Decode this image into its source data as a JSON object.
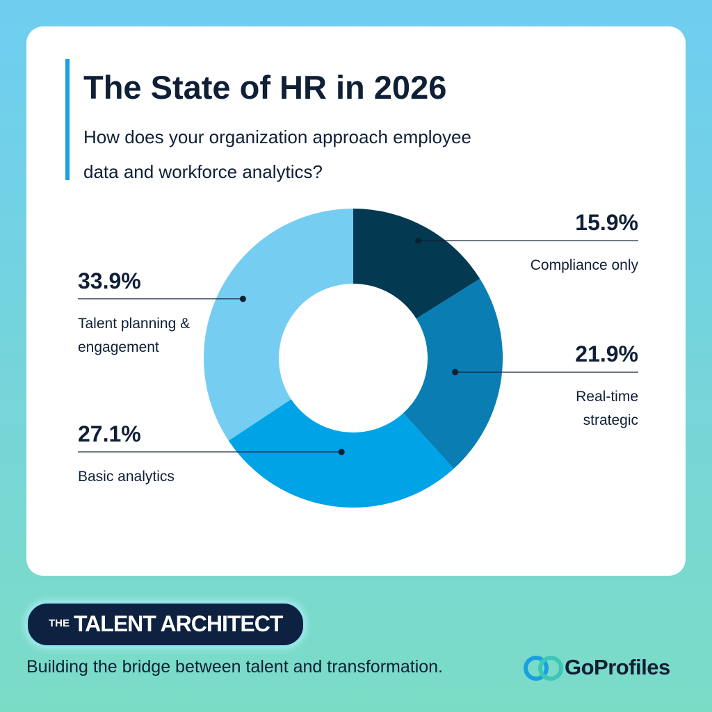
{
  "chart_data": {
    "type": "pie",
    "title": "The State of HR in 2026",
    "subtitle": "How does your organization approach employee data and workforce analytics?",
    "categories": [
      "Compliance only",
      "Real-time strategic",
      "Basic analytics",
      "Talent planning & engagement"
    ],
    "values": [
      15.9,
      21.9,
      27.1,
      33.9
    ],
    "value_labels": [
      "15.9%",
      "21.9%",
      "27.1%",
      "33.9%"
    ],
    "colors": [
      "#033a52",
      "#0a7db3",
      "#00a3e6",
      "#76cdf2"
    ]
  },
  "brand": {
    "badge_prefix": "THE",
    "badge": "TALENT ARCHITECT",
    "tagline": "Building the bridge between talent and transformation.",
    "logo": "GoProfiles"
  }
}
